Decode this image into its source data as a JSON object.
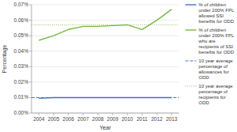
{
  "chart_data": {
    "type": "line",
    "xlabel": "Year",
    "ylabel": "Percentage",
    "x": [
      2004,
      2005,
      2006,
      2007,
      2008,
      2009,
      2010,
      2011,
      2012,
      2013
    ],
    "series": [
      {
        "name": "% of children\nunder 200% FPL\nallowed SSI\nbenefits for ODD",
        "color": "#4472C4",
        "line_style": "solid",
        "values": [
          0.0095,
          0.01,
          0.01,
          0.01,
          0.01,
          0.01,
          0.01,
          0.01,
          0.01,
          0.01
        ]
      },
      {
        "name": "% of children\nunder 200% FPL\nwho are\nrecipients of SSI\nbenefits for ODD",
        "color": "#7AB648",
        "line_style": "solid",
        "values": [
          0.047,
          0.05,
          0.054,
          0.056,
          0.056,
          0.0565,
          0.057,
          0.054,
          0.06,
          0.067
        ]
      },
      {
        "name": "10 year average\npercentage of\nallowances for\nODD",
        "type": "hline",
        "color": "#4472C4",
        "line_style": "dashed",
        "value": 0.01
      },
      {
        "name": "10 year average\npercentage of\nrecipients for\nODD",
        "type": "hline",
        "color": "#9BBB59",
        "line_style": "dotted",
        "value": 0.057
      }
    ],
    "xlim": [
      2003.5,
      2013.5
    ],
    "xticks": [
      2004,
      2005,
      2006,
      2007,
      2008,
      2009,
      2010,
      2011,
      2012,
      2013
    ],
    "ylim": [
      0,
      0.07
    ],
    "yticks": [
      {
        "value": 0,
        "label": "0.00%"
      },
      {
        "value": 0.01,
        "label": "0.01%"
      },
      {
        "value": 0.02,
        "label": "0.02%"
      },
      {
        "value": 0.03,
        "label": "0.03%"
      },
      {
        "value": 0.04,
        "label": "0.04%"
      },
      {
        "value": 0.05,
        "label": "0.05%"
      },
      {
        "value": 0.06,
        "label": "0.06%"
      },
      {
        "value": 0.07,
        "label": "0.07%"
      }
    ],
    "grid": true,
    "legend": "right"
  }
}
